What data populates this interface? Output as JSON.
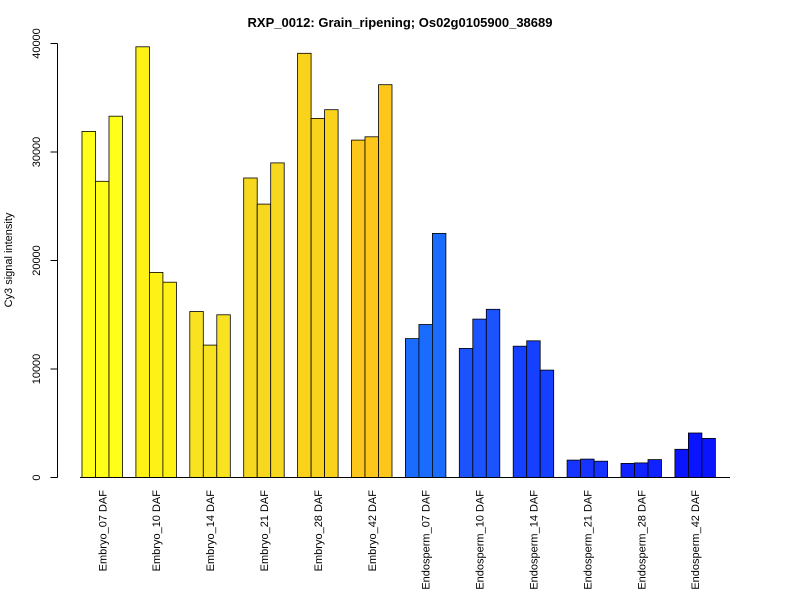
{
  "chart_data": {
    "type": "bar",
    "title": "RXP_0012: Grain_ripening; Os02g0105900_38689",
    "xlabel": "",
    "ylabel": "Cy3 signal intensity",
    "ylim": [
      0,
      40000
    ],
    "yticks": [
      0,
      10000,
      20000,
      30000,
      40000
    ],
    "grid": false,
    "legend": "none",
    "bars_per_group": 3,
    "categories": [
      "Embryo_07 DAF",
      "Embryo_10 DAF",
      "Embryo_14 DAF",
      "Embryo_21 DAF",
      "Embryo_28 DAF",
      "Embryo_42 DAF",
      "Endosperm_07 DAF",
      "Endosperm_10 DAF",
      "Endosperm_14 DAF",
      "Endosperm_21 DAF",
      "Endosperm_28 DAF",
      "Endosperm_42 DAF"
    ],
    "values": [
      [
        31900,
        27300,
        33300
      ],
      [
        39700,
        18900,
        18000
      ],
      [
        15300,
        12200,
        15000
      ],
      [
        27600,
        25200,
        29000
      ],
      [
        39100,
        33100,
        33900
      ],
      [
        31100,
        31400,
        36200
      ],
      [
        12800,
        14100,
        22500
      ],
      [
        11900,
        14600,
        15500
      ],
      [
        12100,
        12600,
        9900
      ],
      [
        1600,
        1700,
        1500
      ],
      [
        1300,
        1350,
        1650
      ],
      [
        2600,
        4100,
        3600
      ]
    ],
    "colors": [
      "#ffff19",
      "#fdf116",
      "#f9e321",
      "#f6d81f",
      "#f9d21b",
      "#fcc71a",
      "#1a6cff",
      "#1b53ff",
      "#1540ff",
      "#1733ff",
      "#0f22ff",
      "#0a14ff"
    ]
  }
}
